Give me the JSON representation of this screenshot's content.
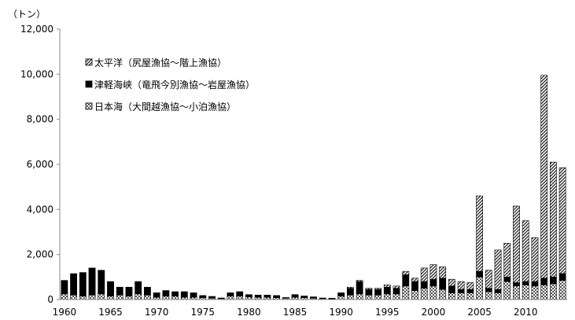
{
  "chart_data": {
    "type": "bar",
    "stacked": true,
    "unit_label": "（トン）",
    "title": "",
    "xlabel": "",
    "ylabel": "",
    "ylim": [
      0,
      12000
    ],
    "yticks": [
      0,
      2000,
      4000,
      6000,
      8000,
      10000,
      12000
    ],
    "ytick_labels": [
      "0",
      "2,000",
      "4,000",
      "6,000",
      "8,000",
      "10,000",
      "12,000"
    ],
    "xtick_labels": [
      "1960",
      "1965",
      "1970",
      "1975",
      "1980",
      "1985",
      "1990",
      "1995",
      "2000",
      "2005",
      "2010"
    ],
    "grid": false,
    "legend_position": "upper-left",
    "categories": [
      1960,
      1961,
      1962,
      1963,
      1964,
      1965,
      1966,
      1967,
      1968,
      1969,
      1970,
      1971,
      1972,
      1973,
      1974,
      1975,
      1976,
      1977,
      1978,
      1979,
      1980,
      1981,
      1982,
      1983,
      1984,
      1985,
      1986,
      1987,
      1988,
      1989,
      1990,
      1991,
      1992,
      1993,
      1994,
      1995,
      1996,
      1997,
      1998,
      1999,
      2000,
      2001,
      2002,
      2003,
      2004,
      2005,
      2006,
      2007,
      2008,
      2009,
      2010,
      2011,
      2012,
      2013,
      2014
    ],
    "series": [
      {
        "name": "日本海（大間越漁協～小泊漁協）",
        "pattern": "check",
        "values": [
          250,
          200,
          150,
          200,
          250,
          150,
          200,
          150,
          250,
          200,
          100,
          150,
          150,
          100,
          100,
          80,
          60,
          40,
          150,
          150,
          120,
          100,
          100,
          80,
          60,
          100,
          80,
          60,
          40,
          30,
          150,
          200,
          250,
          200,
          200,
          250,
          250,
          600,
          400,
          500,
          600,
          450,
          300,
          300,
          300,
          1000,
          350,
          300,
          800,
          600,
          650,
          600,
          650,
          700,
          850
        ]
      },
      {
        "name": "津軽海峡（竜飛今別漁協～岩屋漁協）",
        "pattern": "solid",
        "values": [
          600,
          950,
          1050,
          1200,
          1050,
          650,
          350,
          400,
          550,
          350,
          200,
          250,
          200,
          250,
          200,
          100,
          80,
          30,
          150,
          200,
          100,
          100,
          100,
          100,
          30,
          120,
          80,
          60,
          30,
          30,
          150,
          300,
          550,
          250,
          250,
          300,
          250,
          500,
          400,
          300,
          300,
          500,
          300,
          150,
          150,
          250,
          150,
          150,
          200,
          150,
          150,
          200,
          300,
          300,
          300
        ]
      },
      {
        "name": "太平洋（尻屋漁協～階上漁協）",
        "pattern": "hatch",
        "values": [
          0,
          0,
          0,
          0,
          0,
          0,
          0,
          0,
          0,
          0,
          0,
          0,
          0,
          0,
          0,
          0,
          0,
          0,
          0,
          0,
          0,
          0,
          0,
          0,
          0,
          0,
          0,
          0,
          0,
          0,
          0,
          50,
          50,
          50,
          50,
          100,
          100,
          150,
          150,
          600,
          650,
          500,
          300,
          350,
          300,
          3350,
          800,
          1750,
          1500,
          3400,
          2700,
          1950,
          9000,
          5100,
          4700
        ]
      }
    ]
  }
}
